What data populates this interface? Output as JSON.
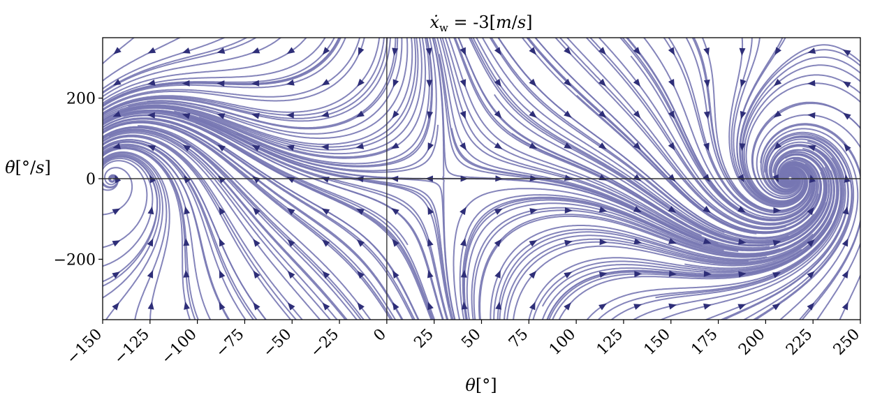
{
  "chart_data": {
    "type": "streamplot",
    "title": "ẋ_w = -3[m/s]",
    "title_parts": {
      "var": "ẋ",
      "sub": "w",
      "eq": " = -3[",
      "num": "m",
      "den": "s",
      "close": "]"
    },
    "xlabel": "θ[°]",
    "xlabel_parts": {
      "var": "θ",
      "unit": "[°]"
    },
    "ylabel": "θ̇[°/s]",
    "ylabel_parts": {
      "var": "θ̇",
      "open": "[",
      "num": "°",
      "den": "s",
      "close": "]"
    },
    "xlim": [
      -150,
      250
    ],
    "ylim": [
      -350,
      350
    ],
    "x_ticks": [
      -150,
      -125,
      -100,
      -75,
      -50,
      -25,
      0,
      25,
      50,
      75,
      100,
      125,
      150,
      175,
      200,
      225,
      250
    ],
    "x_tick_labels": [
      "−150",
      "−125",
      "−100",
      "−75",
      "−50",
      "−25",
      "0",
      "25",
      "50",
      "75",
      "100",
      "125",
      "150",
      "175",
      "200",
      "225",
      "250"
    ],
    "y_ticks": [
      -200,
      0,
      200
    ],
    "y_tick_labels": [
      "−200",
      "0",
      "200"
    ],
    "reference_lines": {
      "x": 0,
      "y": 0
    },
    "fixed_points": [
      {
        "theta": -145,
        "theta_dot": 0,
        "kind": "stable spiral"
      },
      {
        "theta": 30,
        "theta_dot": 0,
        "kind": "saddle"
      },
      {
        "theta": 213,
        "theta_dot": 0,
        "kind": "stable spiral"
      }
    ],
    "colors": {
      "stream": "#7777b3",
      "arrow": "#2e2e78",
      "axis": "#000000",
      "refline": "#333333"
    },
    "grid": false
  }
}
